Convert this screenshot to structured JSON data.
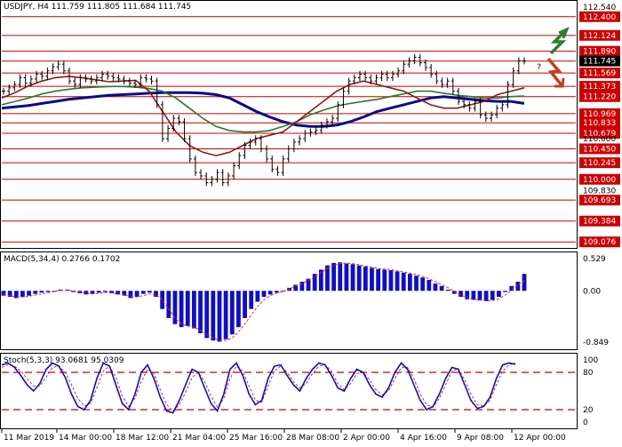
{
  "chart_data": [
    {
      "type": "candlestick",
      "title": "USDJPY, H4  111.759 111.805 111.684 111.745",
      "ylim": [
        109.0,
        112.62
      ],
      "y_ticks": [
        112.54,
        112.4,
        112.124,
        111.89,
        111.745,
        111.569,
        111.373,
        111.22,
        110.969,
        110.833,
        110.679,
        110.6,
        110.45,
        110.245,
        110.0,
        109.83,
        109.693,
        109.384,
        109.076
      ],
      "level_labels": [
        112.4,
        112.124,
        111.89,
        111.745,
        111.569,
        111.373,
        111.22,
        110.969,
        110.833,
        110.679,
        110.45,
        110.245,
        110.0,
        109.693,
        109.384,
        109.076
      ],
      "current_price": 111.745,
      "resistance_levels": [
        112.4,
        112.124,
        111.89
      ],
      "support_levels": [
        111.569,
        111.373,
        111.22,
        110.969,
        110.833,
        110.679,
        110.45,
        110.245,
        110.0,
        109.693,
        109.384
      ],
      "level_color": "#cc0000",
      "candle_color": "#000000",
      "series": [
        {
          "name": "Bars",
          "values": [
            111.3,
            111.35,
            111.4,
            111.5,
            111.42,
            111.48,
            111.55,
            111.52,
            111.6,
            111.66,
            111.7,
            111.6,
            111.45,
            111.4,
            111.5,
            111.48,
            111.45,
            111.5,
            111.55,
            111.52,
            111.5,
            111.48,
            111.45,
            111.42,
            111.4,
            111.5,
            111.48,
            111.45,
            111.1,
            110.6,
            110.75,
            110.9,
            110.85,
            110.6,
            110.3,
            110.1,
            110.05,
            109.95,
            110.0,
            110.1,
            109.95,
            110.05,
            110.2,
            110.35,
            110.5,
            110.55,
            110.6,
            110.45,
            110.3,
            110.15,
            110.1,
            110.3,
            110.45,
            110.55,
            110.6,
            110.68,
            110.7,
            110.72,
            110.8,
            110.85,
            110.9,
            111.1,
            111.3,
            111.45,
            111.5,
            111.55,
            111.5,
            111.45,
            111.5,
            111.55,
            111.5,
            111.55,
            111.6,
            111.7,
            111.75,
            111.8,
            111.72,
            111.65,
            111.55,
            111.45,
            111.4,
            111.45,
            111.3,
            111.15,
            111.1,
            111.05,
            111.15,
            110.95,
            110.9,
            110.95,
            111.05,
            111.1,
            111.4,
            111.6,
            111.75,
            111.745
          ]
        }
      ],
      "indicators": [
        {
          "name": "MA slow",
          "color": "#0a0a8c",
          "values": [
            111.05,
            111.07,
            111.09,
            111.12,
            111.15,
            111.18,
            111.2,
            111.22,
            111.24,
            111.25,
            111.26,
            111.27,
            111.28,
            111.28,
            111.28,
            111.27,
            111.25,
            111.2,
            111.1,
            111.0,
            110.92,
            110.85,
            110.8,
            110.78,
            110.78,
            110.8,
            110.85,
            110.92,
            111.0,
            111.05,
            111.1,
            111.15,
            111.2,
            111.22,
            111.2,
            111.18,
            111.16,
            111.15,
            111.15,
            111.12
          ]
        },
        {
          "name": "MA mid",
          "color": "#2a7a2a",
          "values": [
            111.1,
            111.15,
            111.2,
            111.26,
            111.3,
            111.33,
            111.35,
            111.36,
            111.37,
            111.37,
            111.36,
            111.34,
            111.3,
            111.2,
            111.05,
            110.9,
            110.78,
            110.72,
            110.7,
            110.7,
            110.72,
            110.78,
            110.85,
            110.95,
            111.02,
            111.08,
            111.12,
            111.15,
            111.18,
            111.22,
            111.26,
            111.3,
            111.3,
            111.27,
            111.24,
            111.22,
            111.2,
            111.2,
            111.22,
            111.23
          ]
        },
        {
          "name": "MA fast",
          "color": "#8b1a1a",
          "values": [
            111.2,
            111.28,
            111.38,
            111.45,
            111.5,
            111.52,
            111.5,
            111.47,
            111.44,
            111.45,
            111.46,
            111.3,
            111.0,
            110.7,
            110.5,
            110.4,
            110.35,
            110.4,
            110.5,
            110.6,
            110.65,
            110.7,
            110.85,
            111.0,
            111.15,
            111.3,
            111.4,
            111.45,
            111.4,
            111.35,
            111.3,
            111.2,
            111.1,
            111.05,
            111.05,
            111.1,
            111.15,
            111.25,
            111.3,
            111.35
          ]
        }
      ],
      "x_ticks": [
        "11 Mar 2019",
        "14 Mar 00:00",
        "18 Mar 12:00",
        "21 Mar 04:00",
        "25 Mar 16:00",
        "28 Mar 08:00",
        "2 Apr 00:00",
        "4 Apr 16:00",
        "9 Apr 08:00",
        "12 Apr 00:00"
      ],
      "annotations": [
        {
          "type": "arrow-up",
          "color": "#2e7d32"
        },
        {
          "type": "question-mark",
          "text": "?",
          "color": "#c04020"
        },
        {
          "type": "arrow-down",
          "color": "#c04020"
        }
      ]
    },
    {
      "type": "bar",
      "title": "MACD(5,34,4) 0.2766 0.1702",
      "ylim": [
        -0.95,
        0.62
      ],
      "y_ticks": [
        0.529,
        0.0,
        -0.849
      ],
      "series": [
        {
          "name": "MACD",
          "color": "#1010c0",
          "values": [
            -0.08,
            -0.1,
            -0.12,
            -0.1,
            -0.08,
            -0.05,
            -0.03,
            -0.02,
            0.0,
            0.02,
            0.02,
            -0.02,
            -0.04,
            -0.06,
            -0.05,
            -0.03,
            -0.02,
            -0.04,
            -0.06,
            -0.08,
            -0.12,
            -0.1,
            -0.05,
            -0.03,
            -0.1,
            -0.3,
            -0.45,
            -0.55,
            -0.6,
            -0.58,
            -0.62,
            -0.7,
            -0.78,
            -0.82,
            -0.84,
            -0.8,
            -0.72,
            -0.6,
            -0.45,
            -0.3,
            -0.18,
            -0.1,
            -0.06,
            -0.03,
            0.0,
            0.05,
            0.1,
            0.15,
            0.2,
            0.28,
            0.35,
            0.42,
            0.46,
            0.47,
            0.45,
            0.44,
            0.42,
            0.4,
            0.38,
            0.36,
            0.35,
            0.34,
            0.32,
            0.3,
            0.28,
            0.25,
            0.22,
            0.18,
            0.12,
            0.08,
            0.02,
            -0.05,
            -0.1,
            -0.14,
            -0.15,
            -0.16,
            -0.17,
            -0.15,
            -0.1,
            -0.02,
            0.08,
            0.15,
            0.28
          ]
        },
        {
          "name": "Signal",
          "color": "#e03030",
          "values": [
            -0.06,
            -0.08,
            -0.1,
            -0.1,
            -0.09,
            -0.07,
            -0.05,
            -0.03,
            -0.01,
            0.01,
            0.01,
            0.0,
            -0.02,
            -0.04,
            -0.05,
            -0.04,
            -0.03,
            -0.03,
            -0.05,
            -0.07,
            -0.09,
            -0.1,
            -0.08,
            -0.05,
            -0.06,
            -0.15,
            -0.3,
            -0.45,
            -0.55,
            -0.58,
            -0.6,
            -0.65,
            -0.72,
            -0.78,
            -0.82,
            -0.82,
            -0.78,
            -0.68,
            -0.55,
            -0.4,
            -0.26,
            -0.15,
            -0.08,
            -0.04,
            -0.01,
            0.03,
            0.08,
            0.12,
            0.17,
            0.23,
            0.3,
            0.37,
            0.42,
            0.45,
            0.46,
            0.45,
            0.43,
            0.41,
            0.39,
            0.37,
            0.36,
            0.35,
            0.33,
            0.31,
            0.29,
            0.27,
            0.24,
            0.2,
            0.15,
            0.1,
            0.05,
            -0.01,
            -0.07,
            -0.11,
            -0.14,
            -0.15,
            -0.16,
            -0.16,
            -0.13,
            -0.07,
            0.01,
            0.1,
            0.17
          ]
        }
      ]
    },
    {
      "type": "line",
      "title": "Stoch(5,3,3) 93.0681 95.0309",
      "ylim": [
        0,
        100
      ],
      "y_ticks": [
        100,
        80,
        20,
        0
      ],
      "ref_levels": [
        80,
        20
      ],
      "series": [
        {
          "name": "%K",
          "color": "#1010b0",
          "values": [
            92,
            95,
            88,
            75,
            60,
            50,
            62,
            85,
            95,
            90,
            72,
            45,
            25,
            20,
            35,
            70,
            95,
            90,
            60,
            30,
            20,
            45,
            80,
            92,
            70,
            40,
            18,
            15,
            35,
            60,
            85,
            80,
            55,
            30,
            18,
            45,
            85,
            95,
            75,
            45,
            28,
            35,
            70,
            90,
            92,
            75,
            60,
            50,
            70,
            85,
            95,
            92,
            75,
            55,
            50,
            70,
            85,
            80,
            60,
            45,
            40,
            55,
            80,
            95,
            85,
            60,
            35,
            20,
            25,
            45,
            70,
            88,
            85,
            60,
            35,
            22,
            25,
            40,
            70,
            92,
            95,
            93
          ]
        },
        {
          "name": "%D",
          "color": "#d03030",
          "values": [
            88,
            92,
            90,
            82,
            70,
            58,
            58,
            72,
            88,
            90,
            80,
            60,
            38,
            26,
            30,
            55,
            82,
            90,
            72,
            42,
            25,
            38,
            65,
            85,
            78,
            52,
            28,
            18,
            28,
            48,
            72,
            80,
            65,
            42,
            24,
            38,
            70,
            90,
            82,
            58,
            35,
            32,
            58,
            82,
            90,
            80,
            65,
            55,
            62,
            78,
            90,
            92,
            82,
            62,
            52,
            62,
            78,
            80,
            68,
            52,
            44,
            50,
            70,
            88,
            88,
            70,
            45,
            28,
            24,
            38,
            60,
            82,
            86,
            68,
            45,
            28,
            26,
            35,
            60,
            82,
            92,
            95
          ]
        }
      ]
    }
  ]
}
